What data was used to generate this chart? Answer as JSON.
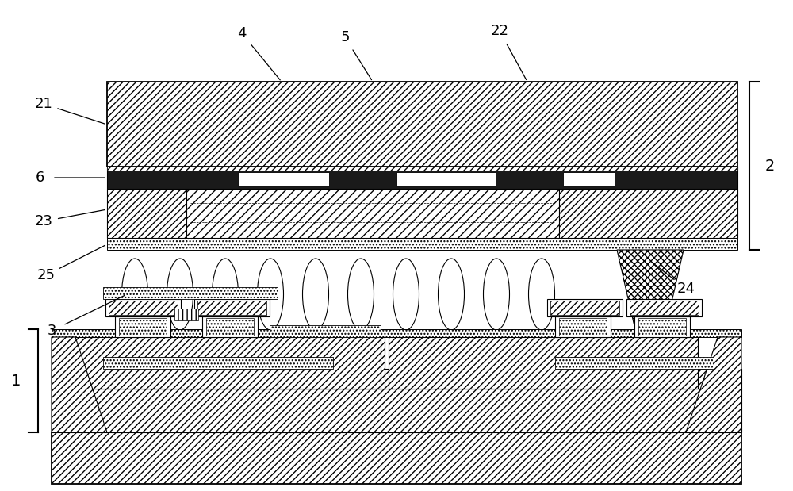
{
  "bg_color": "#ffffff",
  "fig_w": 10.0,
  "fig_h": 6.19,
  "dpi": 100,
  "lw_main": 1.3,
  "lw_thin": 0.8,
  "lw_thick": 1.5,
  "dark_fill": "#1a1a1a",
  "white_fill": "#ffffff",
  "gray_fill": "#e0e0e0"
}
